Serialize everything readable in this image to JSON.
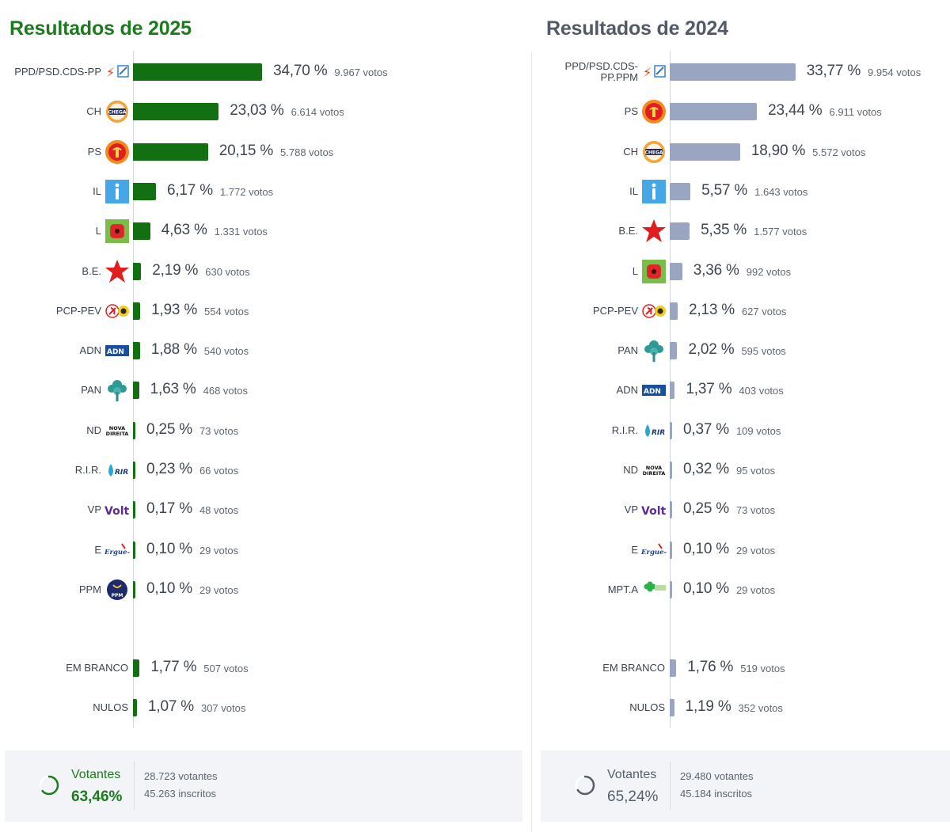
{
  "colors": {
    "green": "#137012",
    "blue_gray": "#9aa6c1",
    "title_green": "#1e7a1e",
    "title_gray": "#515a66"
  },
  "panels": [
    {
      "id": "2025",
      "title": "Resultados de 2025",
      "bar_color": "green",
      "footer": {
        "label": "Votantes",
        "percent": "63,46%",
        "voters": "28.723 votantes",
        "registered": "45.263 inscritos",
        "turnout": 63.46
      },
      "rows": [
        {
          "party": "PPD/PSD.CDS-PP",
          "logo": "ad-logo-icon",
          "pct": "34,70 %",
          "votes": "9.967 votos",
          "value": 34.7
        },
        {
          "party": "CH",
          "logo": "chega-logo-icon",
          "pct": "23,03 %",
          "votes": "6.614 votos",
          "value": 23.03
        },
        {
          "party": "PS",
          "logo": "ps-logo-icon",
          "pct": "20,15 %",
          "votes": "5.788 votos",
          "value": 20.15
        },
        {
          "party": "IL",
          "logo": "il-logo-icon",
          "pct": "6,17 %",
          "votes": "1.772 votos",
          "value": 6.17
        },
        {
          "party": "L",
          "logo": "livre-logo-icon",
          "pct": "4,63 %",
          "votes": "1.331 votos",
          "value": 4.63
        },
        {
          "party": "B.E.",
          "logo": "be-logo-icon",
          "pct": "2,19 %",
          "votes": "630 votos",
          "value": 2.19
        },
        {
          "party": "PCP-PEV",
          "logo": "cdu-logo-icon",
          "pct": "1,93 %",
          "votes": "554 votos",
          "value": 1.93
        },
        {
          "party": "ADN",
          "logo": "adn-logo-icon",
          "pct": "1,88 %",
          "votes": "540 votos",
          "value": 1.88
        },
        {
          "party": "PAN",
          "logo": "pan-logo-icon",
          "pct": "1,63 %",
          "votes": "468 votos",
          "value": 1.63
        },
        {
          "party": "ND",
          "logo": "nd-logo-icon",
          "pct": "0,25 %",
          "votes": "73 votos",
          "value": 0.25
        },
        {
          "party": "R.I.R.",
          "logo": "rir-logo-icon",
          "pct": "0,23 %",
          "votes": "66 votos",
          "value": 0.23
        },
        {
          "party": "VP",
          "logo": "volt-logo-icon",
          "pct": "0,17 %",
          "votes": "48 votos",
          "value": 0.17
        },
        {
          "party": "E",
          "logo": "ergue-te-logo-icon",
          "pct": "0,10 %",
          "votes": "29 votos",
          "value": 0.1
        },
        {
          "party": "PPM",
          "logo": "ppm-logo-icon",
          "pct": "0,10 %",
          "votes": "29 votos",
          "value": 0.1
        }
      ],
      "extra_rows": [
        {
          "party": "EM BRANCO",
          "pct": "1,77 %",
          "votes": "507 votos",
          "value": 1.77
        },
        {
          "party": "NULOS",
          "pct": "1,07 %",
          "votes": "307 votos",
          "value": 1.07
        }
      ]
    },
    {
      "id": "2024",
      "title": "Resultados de 2024",
      "bar_color": "blue_gray",
      "footer": {
        "label": "Votantes",
        "percent": "65,24%",
        "voters": "29.480 votantes",
        "registered": "45.184 inscritos",
        "turnout": 65.24
      },
      "rows": [
        {
          "party": "PPD/PSD.CDS-PP.PPM",
          "party_line1": "PPD/PSD.CDS-",
          "party_line2": "PP.PPM",
          "logo": "ad-logo-icon",
          "pct": "33,77 %",
          "votes": "9.954 votos",
          "value": 33.77
        },
        {
          "party": "PS",
          "logo": "ps-logo-icon",
          "pct": "23,44 %",
          "votes": "6.911 votos",
          "value": 23.44
        },
        {
          "party": "CH",
          "logo": "chega-logo-icon",
          "pct": "18,90 %",
          "votes": "5.572 votos",
          "value": 18.9
        },
        {
          "party": "IL",
          "logo": "il-logo-icon",
          "pct": "5,57 %",
          "votes": "1.643 votos",
          "value": 5.57
        },
        {
          "party": "B.E.",
          "logo": "be-logo-icon",
          "pct": "5,35 %",
          "votes": "1.577 votos",
          "value": 5.35
        },
        {
          "party": "L",
          "logo": "livre-logo-icon",
          "pct": "3,36 %",
          "votes": "992 votos",
          "value": 3.36
        },
        {
          "party": "PCP-PEV",
          "logo": "cdu-logo-icon",
          "pct": "2,13 %",
          "votes": "627 votos",
          "value": 2.13
        },
        {
          "party": "PAN",
          "logo": "pan-logo-icon",
          "pct": "2,02 %",
          "votes": "595 votos",
          "value": 2.02
        },
        {
          "party": "ADN",
          "logo": "adn-logo-icon",
          "pct": "1,37 %",
          "votes": "403 votos",
          "value": 1.37
        },
        {
          "party": "R.I.R.",
          "logo": "rir-logo-icon",
          "pct": "0,37 %",
          "votes": "109 votos",
          "value": 0.37
        },
        {
          "party": "ND",
          "logo": "nd-logo-icon",
          "pct": "0,32 %",
          "votes": "95 votos",
          "value": 0.32
        },
        {
          "party": "VP",
          "logo": "volt-logo-icon",
          "pct": "0,25 %",
          "votes": "73 votos",
          "value": 0.25
        },
        {
          "party": "E",
          "logo": "ergue-te-logo-icon",
          "pct": "0,10 %",
          "votes": "29 votos",
          "value": 0.1
        },
        {
          "party": "MPT.A",
          "logo": "mpt-logo-icon",
          "pct": "0,10 %",
          "votes": "29 votos",
          "value": 0.1
        }
      ],
      "extra_rows": [
        {
          "party": "EM BRANCO",
          "pct": "1,76 %",
          "votes": "519 votos",
          "value": 1.76
        },
        {
          "party": "NULOS",
          "pct": "1,19 %",
          "votes": "352 votos",
          "value": 1.19
        }
      ]
    }
  ],
  "chart_data": [
    {
      "type": "bar",
      "title": "Resultados de 2025",
      "categories": [
        "PPD/PSD.CDS-PP",
        "CH",
        "PS",
        "IL",
        "L",
        "B.E.",
        "PCP-PEV",
        "ADN",
        "PAN",
        "ND",
        "R.I.R.",
        "VP",
        "E",
        "PPM",
        "EM BRANCO",
        "NULOS"
      ],
      "values": [
        34.7,
        23.03,
        20.15,
        6.17,
        4.63,
        2.19,
        1.93,
        1.88,
        1.63,
        0.25,
        0.23,
        0.17,
        0.1,
        0.1,
        1.77,
        1.07
      ],
      "votes": [
        9967,
        6614,
        5788,
        1772,
        1331,
        630,
        554,
        540,
        468,
        73,
        66,
        48,
        29,
        29,
        507,
        307
      ],
      "orientation": "horizontal",
      "unit": "%"
    },
    {
      "type": "bar",
      "title": "Resultados de 2024",
      "categories": [
        "PPD/PSD.CDS-PP.PPM",
        "PS",
        "CH",
        "IL",
        "B.E.",
        "L",
        "PCP-PEV",
        "PAN",
        "ADN",
        "R.I.R.",
        "ND",
        "VP",
        "E",
        "MPT.A",
        "EM BRANCO",
        "NULOS"
      ],
      "values": [
        33.77,
        23.44,
        18.9,
        5.57,
        5.35,
        3.36,
        2.13,
        2.02,
        1.37,
        0.37,
        0.32,
        0.25,
        0.1,
        0.1,
        1.76,
        1.19
      ],
      "votes": [
        9954,
        6911,
        5572,
        1643,
        1577,
        992,
        627,
        595,
        403,
        109,
        95,
        73,
        29,
        29,
        519,
        352
      ],
      "orientation": "horizontal",
      "unit": "%"
    }
  ]
}
